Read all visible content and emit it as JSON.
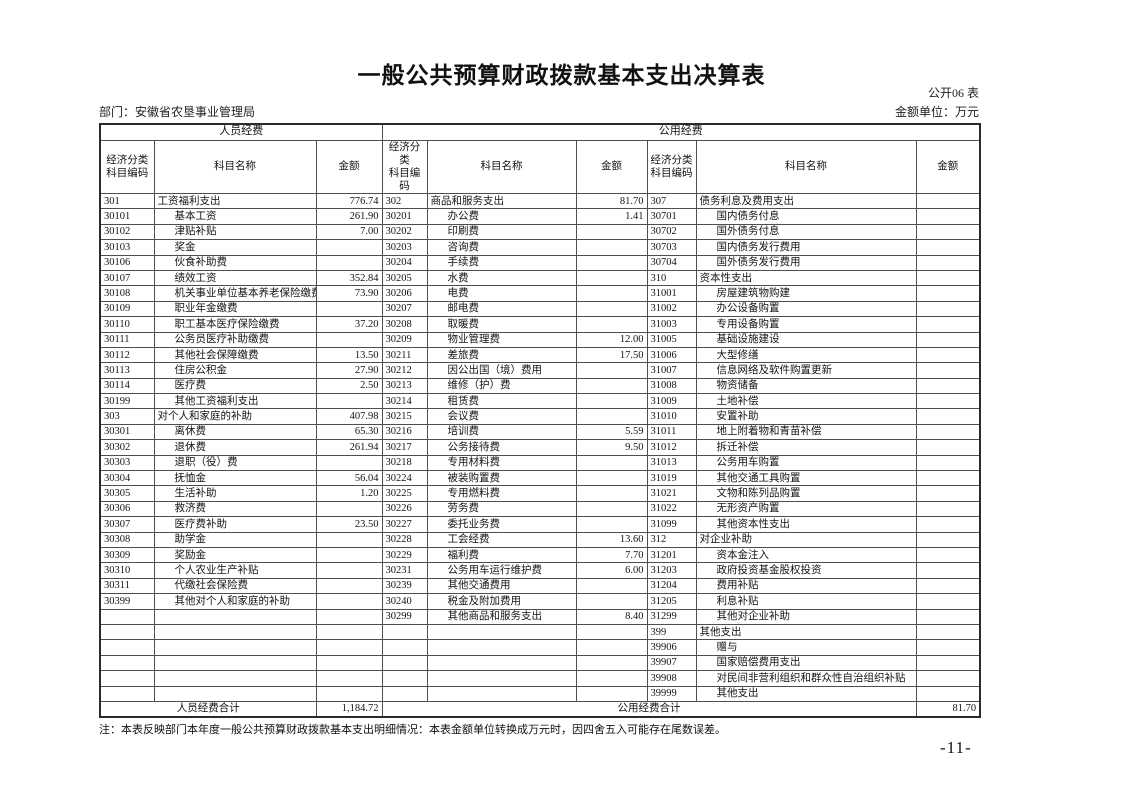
{
  "page": {
    "title": "一般公共预算财政拨款基本支出决算表",
    "table_code": "公开06 表",
    "department": "部门：安徽省农垦事业管理局",
    "unit": "金额单位：万元",
    "note": "注：本表反映部门本年度一般公共预算财政拨款基本支出明细情况：本表金额单位转换成万元时，因四舍五入可能存在尾数误差。",
    "page_number": "-11-"
  },
  "table": {
    "sections": [
      "人员经费",
      "公用经费"
    ],
    "col_headers": {
      "code": "经济分类\n科目编码",
      "name": "科目名称",
      "amount": "金额"
    },
    "rows": [
      [
        "301",
        "工资福利支出",
        "776.74",
        "302",
        "商品和服务支出",
        "81.70",
        "307",
        "债务利息及费用支出",
        ""
      ],
      [
        "30101",
        "基本工资",
        "261.90",
        "30201",
        "办公费",
        "1.41",
        "30701",
        "国内债务付息",
        ""
      ],
      [
        "30102",
        "津贴补贴",
        "7.00",
        "30202",
        "印刷费",
        "",
        "30702",
        "国外债务付息",
        ""
      ],
      [
        "30103",
        "奖金",
        "",
        "30203",
        "咨询费",
        "",
        "30703",
        "国内债务发行费用",
        ""
      ],
      [
        "30106",
        "伙食补助费",
        "",
        "30204",
        "手续费",
        "",
        "30704",
        "国外债务发行费用",
        ""
      ],
      [
        "30107",
        "绩效工资",
        "352.84",
        "30205",
        "水费",
        "",
        "310",
        "资本性支出",
        ""
      ],
      [
        "30108",
        "机关事业单位基本养老保险缴费",
        "73.90",
        "30206",
        "电费",
        "",
        "31001",
        "房屋建筑物购建",
        ""
      ],
      [
        "30109",
        "职业年金缴费",
        "",
        "30207",
        "邮电费",
        "",
        "31002",
        "办公设备购置",
        ""
      ],
      [
        "30110",
        "职工基本医疗保险缴费",
        "37.20",
        "30208",
        "取暖费",
        "",
        "31003",
        "专用设备购置",
        ""
      ],
      [
        "30111",
        "公务员医疗补助缴费",
        "",
        "30209",
        "物业管理费",
        "12.00",
        "31005",
        "基础设施建设",
        ""
      ],
      [
        "30112",
        "其他社会保障缴费",
        "13.50",
        "30211",
        "差旅费",
        "17.50",
        "31006",
        "大型修缮",
        ""
      ],
      [
        "30113",
        "住房公积金",
        "27.90",
        "30212",
        "因公出国（境）费用",
        "",
        "31007",
        "信息网络及软件购置更新",
        ""
      ],
      [
        "30114",
        "医疗费",
        "2.50",
        "30213",
        "维修（护）费",
        "",
        "31008",
        "物资储备",
        ""
      ],
      [
        "30199",
        "其他工资福利支出",
        "",
        "30214",
        "租赁费",
        "",
        "31009",
        "土地补偿",
        ""
      ],
      [
        "303",
        "对个人和家庭的补助",
        "407.98",
        "30215",
        "会议费",
        "",
        "31010",
        "安置补助",
        ""
      ],
      [
        "30301",
        "离休费",
        "65.30",
        "30216",
        "培训费",
        "5.59",
        "31011",
        "地上附着物和青苗补偿",
        ""
      ],
      [
        "30302",
        "退休费",
        "261.94",
        "30217",
        "公务接待费",
        "9.50",
        "31012",
        "拆迁补偿",
        ""
      ],
      [
        "30303",
        "退职（役）费",
        "",
        "30218",
        "专用材料费",
        "",
        "31013",
        "公务用车购置",
        ""
      ],
      [
        "30304",
        "抚恤金",
        "56.04",
        "30224",
        "被装购置费",
        "",
        "31019",
        "其他交通工具购置",
        ""
      ],
      [
        "30305",
        "生活补助",
        "1.20",
        "30225",
        "专用燃料费",
        "",
        "31021",
        "文物和陈列品购置",
        ""
      ],
      [
        "30306",
        "救济费",
        "",
        "30226",
        "劳务费",
        "",
        "31022",
        "无形资产购置",
        ""
      ],
      [
        "30307",
        "医疗费补助",
        "23.50",
        "30227",
        "委托业务费",
        "",
        "31099",
        "其他资本性支出",
        ""
      ],
      [
        "30308",
        "助学金",
        "",
        "30228",
        "工会经费",
        "13.60",
        "312",
        "对企业补助",
        ""
      ],
      [
        "30309",
        "奖励金",
        "",
        "30229",
        "福利费",
        "7.70",
        "31201",
        "资本金注入",
        ""
      ],
      [
        "30310",
        "个人农业生产补贴",
        "",
        "30231",
        "公务用车运行维护费",
        "6.00",
        "31203",
        "政府投资基金股权投资",
        ""
      ],
      [
        "30311",
        "代缴社会保险费",
        "",
        "30239",
        "其他交通费用",
        "",
        "31204",
        "费用补贴",
        ""
      ],
      [
        "30399",
        "其他对个人和家庭的补助",
        "",
        "30240",
        "税金及附加费用",
        "",
        "31205",
        "利息补贴",
        ""
      ],
      [
        "",
        "",
        "",
        "30299",
        "其他商品和服务支出",
        "8.40",
        "31299",
        "其他对企业补助",
        ""
      ],
      [
        "",
        "",
        "",
        "",
        "",
        "",
        "399",
        "其他支出",
        ""
      ],
      [
        "",
        "",
        "",
        "",
        "",
        "",
        "39906",
        "赠与",
        ""
      ],
      [
        "",
        "",
        "",
        "",
        "",
        "",
        "39907",
        "国家赔偿费用支出",
        ""
      ],
      [
        "",
        "",
        "",
        "",
        "",
        "",
        "39908",
        "对民间非营利组织和群众性自治组织补贴",
        ""
      ],
      [
        "",
        "",
        "",
        "",
        "",
        "",
        "39999",
        "其他支出",
        ""
      ]
    ],
    "footer": {
      "left_label": "人员经费合计",
      "left_amount": "1,184.72",
      "right_label": "公用经费合计",
      "right_amount": "81.70"
    }
  }
}
